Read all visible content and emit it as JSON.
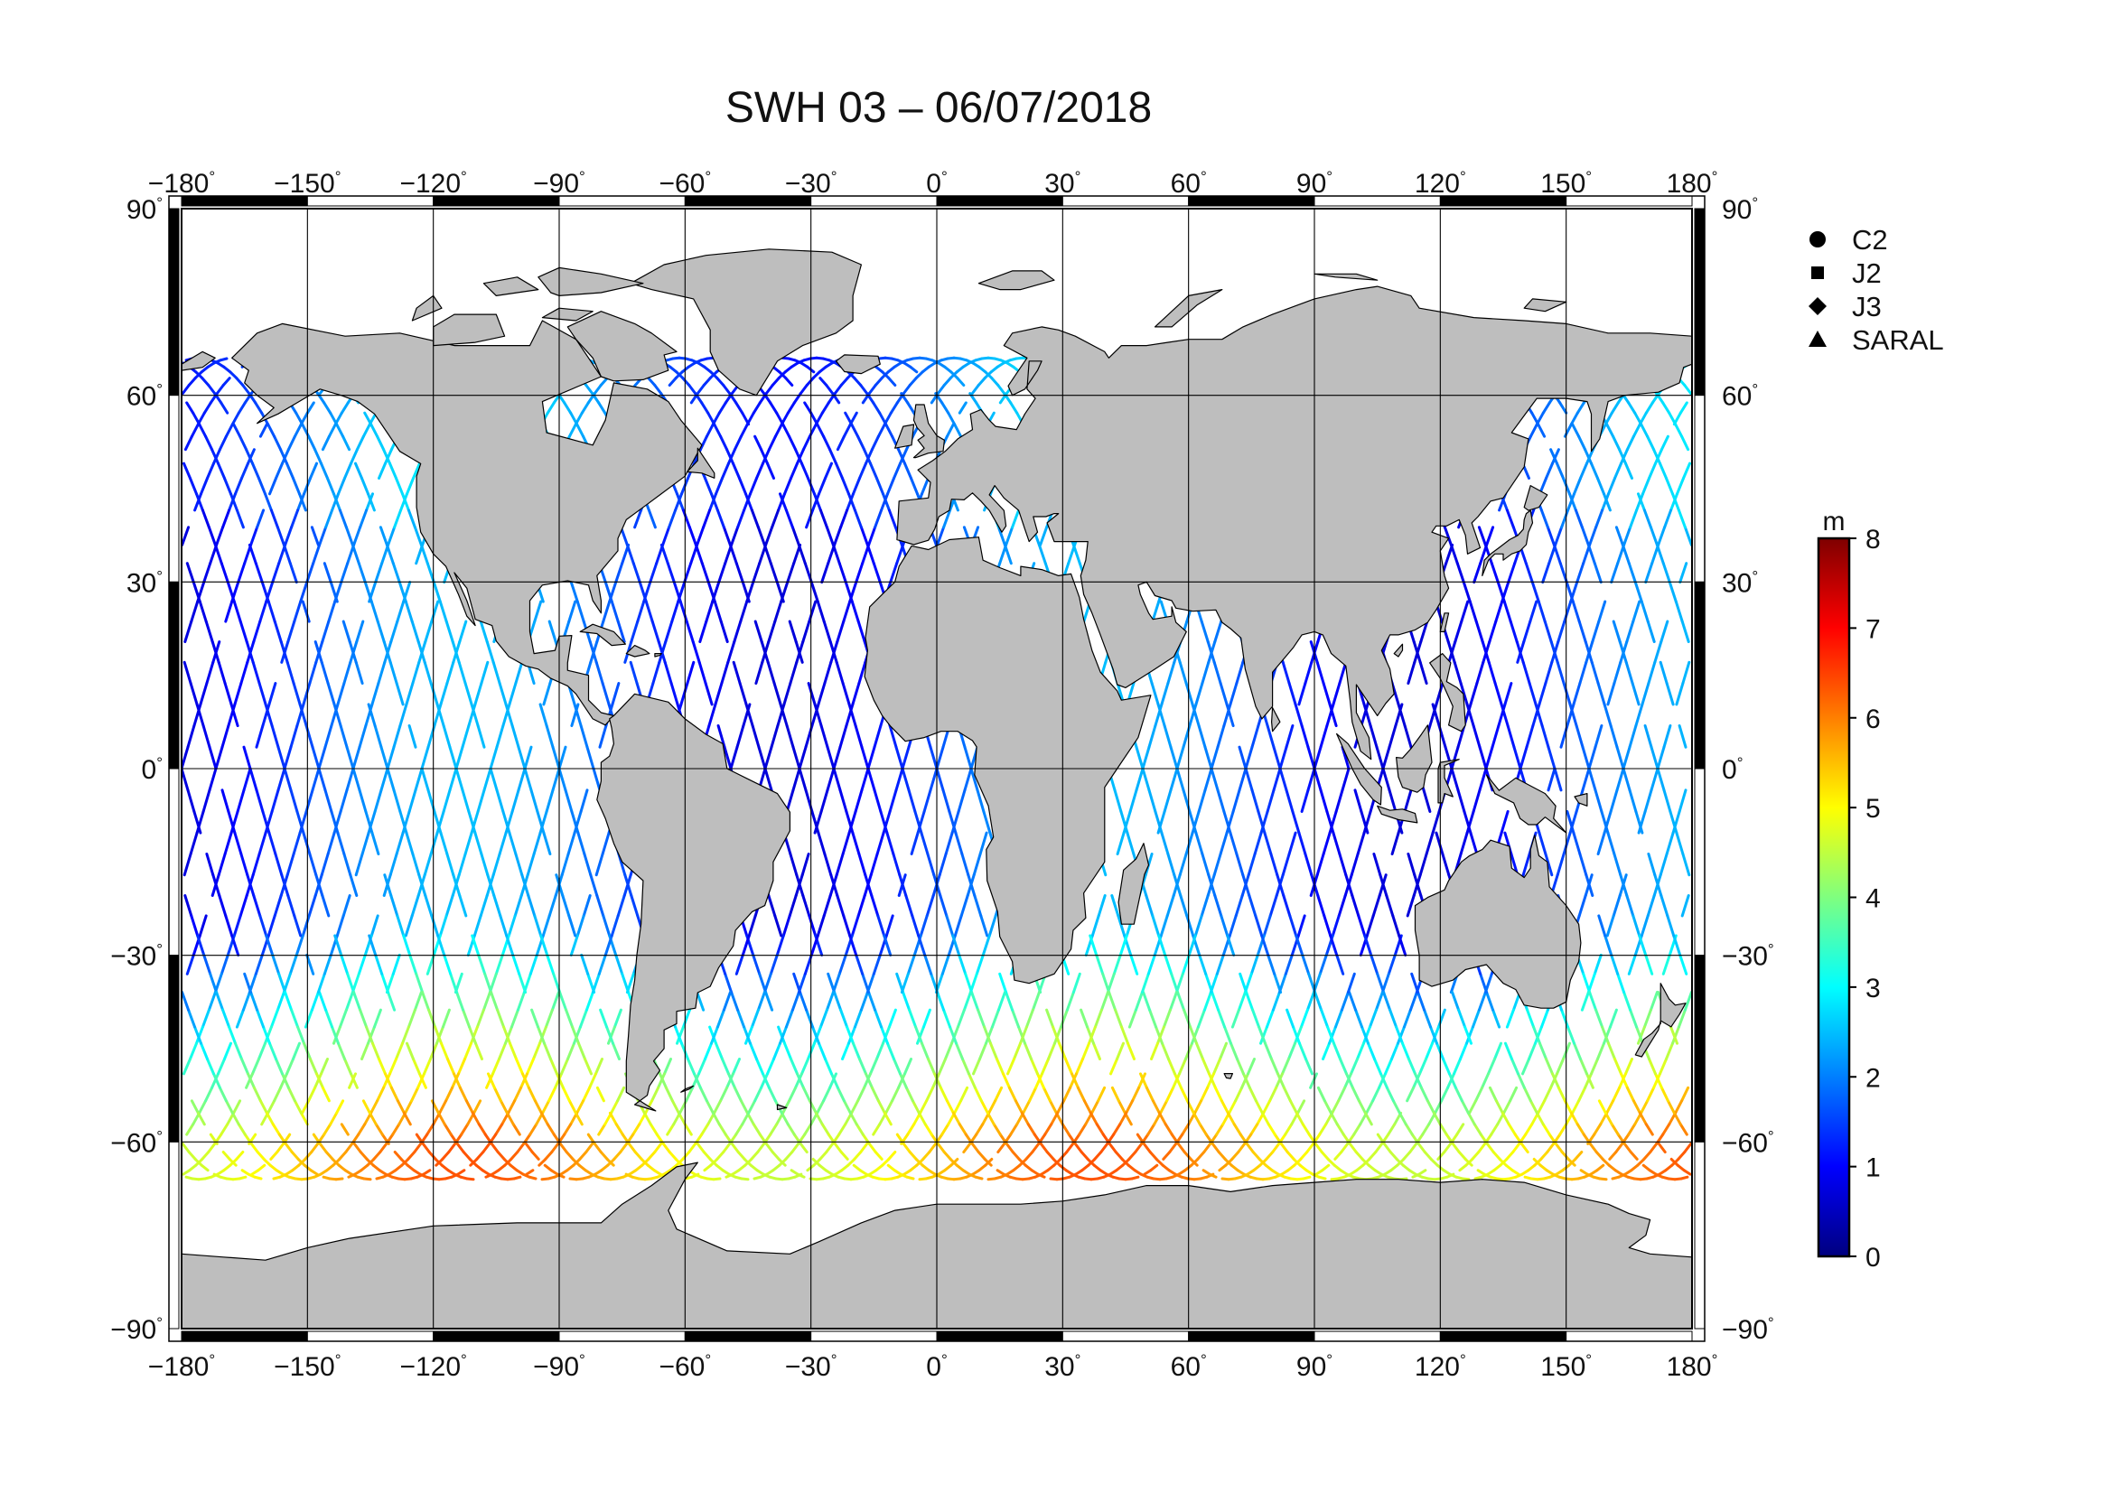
{
  "title": "SWH 03 – 06/07/2018",
  "map": {
    "projection": "equirectangular",
    "lon_range": [
      -180,
      180
    ],
    "lat_range": [
      -90,
      90
    ],
    "grid_step_deg": 30,
    "land_color": "#bebebe",
    "ocean_color": "#ffffff",
    "lon_ticks": [
      "-180",
      "-150",
      "-120",
      "-90",
      "-60",
      "-30",
      "0",
      "30",
      "60",
      "90",
      "120",
      "150",
      "180"
    ],
    "lat_ticks": [
      "90",
      "60",
      "30",
      "0",
      "-30",
      "-60",
      "-90"
    ],
    "degree_symbol": "°"
  },
  "legend": {
    "items": [
      {
        "label": "C2",
        "marker": "circle"
      },
      {
        "label": "J2",
        "marker": "square"
      },
      {
        "label": "J3",
        "marker": "diamond"
      },
      {
        "label": "SARAL",
        "marker": "triangle"
      }
    ]
  },
  "colorbar": {
    "unit": "m",
    "min": 0,
    "max": 8,
    "ticks": [
      "0",
      "1",
      "2",
      "3",
      "4",
      "5",
      "6",
      "7",
      "8"
    ],
    "colormap": [
      "#00007f",
      "#0000ff",
      "#007fff",
      "#00ffff",
      "#7fff7f",
      "#ffff00",
      "#ff7f00",
      "#ff0000",
      "#7f0000"
    ]
  }
}
